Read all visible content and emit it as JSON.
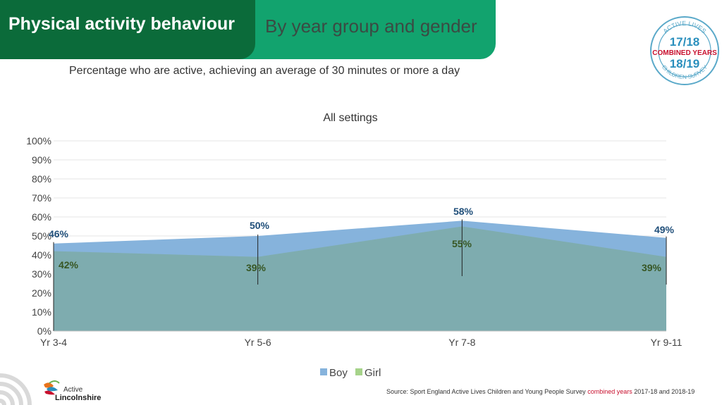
{
  "header": {
    "title": "Physical activity behaviour",
    "subtitle": "By year group and gender"
  },
  "subtitle": "Percentage who are active, achieving an average of 30 minutes or more a day",
  "badge": {
    "top_text": "ACTIVE LIVES",
    "year1": "17/18",
    "combined": "COMBINED YEARS",
    "year2": "18/19",
    "bottom_text": "CHILDREN SURVEY",
    "ring_color": "#5aa9c9",
    "year_color": "#2a8fbd",
    "combined_color": "#c8102e"
  },
  "chart_data": {
    "type": "area",
    "title": "All settings",
    "categories": [
      "Yr 3-4",
      "Yr 5-6",
      "Yr 7-8",
      "Yr 9-11"
    ],
    "series": [
      {
        "name": "Boy",
        "values": [
          46,
          50,
          58,
          49
        ],
        "labels": [
          "46%",
          "50%",
          "58%",
          "49%"
        ],
        "color": "#86b3dc",
        "label_color": "#1f4e79"
      },
      {
        "name": "Girl",
        "values": [
          42,
          39,
          55,
          39
        ],
        "labels": [
          "42%",
          "39%",
          "55%",
          "39%"
        ],
        "color": "#a6d38a",
        "label_color": "#375623"
      }
    ],
    "ylim": [
      0,
      100
    ],
    "yticks": [
      0,
      10,
      20,
      30,
      40,
      50,
      60,
      70,
      80,
      90,
      100
    ],
    "ytick_labels": [
      "0%",
      "10%",
      "20%",
      "30%",
      "40%",
      "50%",
      "60%",
      "70%",
      "80%",
      "90%",
      "100%"
    ],
    "grid": true,
    "legend": "bottom"
  },
  "source": {
    "prefix": "Source: Sport England Active Lives Children and Young People Survey ",
    "highlight": "combined years",
    "suffix": " 2017-18 and 2018-19"
  },
  "brand": {
    "line1": "Active",
    "line2": "Lincolnshire"
  }
}
